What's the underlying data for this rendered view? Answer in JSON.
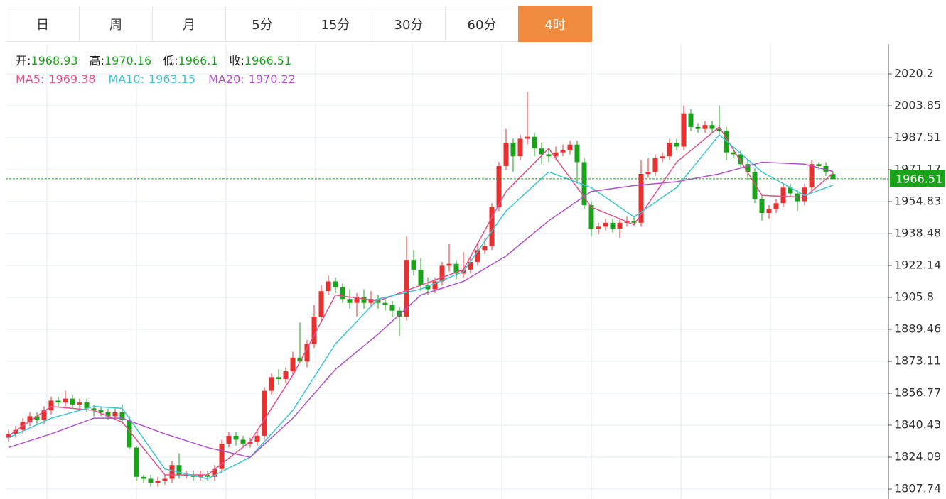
{
  "tabs": [
    "日",
    "周",
    "月",
    "5分",
    "15分",
    "30分",
    "60分",
    "4时"
  ],
  "active_tab": 7,
  "chart_data": {
    "type": "candlestick",
    "ohlc_labels": [
      "开:",
      "高:",
      "低:",
      "收:"
    ],
    "up_color": "#e8312f",
    "down_color": "#19a319",
    "ylim": [
      1802.65,
      2035.46
    ],
    "yticks": [
      1807.74,
      1824.09,
      1840.43,
      1856.77,
      1873.11,
      1889.46,
      1905.8,
      1922.14,
      1938.48,
      1954.83,
      1971.17,
      1987.51,
      2003.85,
      2020.2
    ],
    "grid": true,
    "open": [
      1834,
      1836,
      1838,
      1842,
      1845,
      1843,
      1848,
      1853,
      1852,
      1854,
      1851,
      1852,
      1849,
      1848,
      1847,
      1845,
      1847,
      1843,
      1829,
      1814,
      1813,
      1811,
      1812,
      1813,
      1820,
      1815,
      1815,
      1814,
      1815,
      1814,
      1818,
      1831,
      1835,
      1833,
      1831,
      1832,
      1835,
      1858,
      1865,
      1864,
      1868,
      1875,
      1873,
      1882,
      1896,
      1909,
      1914,
      1911,
      1905,
      1903,
      1906,
      1903,
      1905,
      1903,
      1902,
      1899,
      1896,
      1925,
      1920,
      1912,
      1910,
      1914,
      1922,
      1923,
      1918,
      1920,
      1924,
      1930,
      1932,
      1952,
      1973,
      1985,
      1978,
      1987,
      1988,
      1982,
      1979,
      1978,
      1980,
      1981,
      1984,
      1975,
      1953,
      1941,
      1942,
      1944,
      1941,
      1944,
      1945,
      1944,
      1969,
      1970,
      1977,
      1978,
      1985,
      1983,
      2000,
      1993,
      1992,
      1994,
      1992,
      1991,
      1980,
      1979,
      1974,
      1970,
      1956,
      1949,
      1951,
      1954,
      1962,
      1959,
      1955,
      1962,
      1974,
      1973,
      1968.93
    ],
    "high": [
      1838,
      1840,
      1844,
      1847,
      1847,
      1850,
      1855,
      1855,
      1858,
      1856,
      1854,
      1854,
      1851,
      1850,
      1849,
      1849,
      1851,
      1845,
      1830,
      1815,
      1815,
      1814,
      1815,
      1822,
      1826,
      1817,
      1817,
      1817,
      1817,
      1820,
      1833,
      1837,
      1837,
      1835,
      1834,
      1838,
      1860,
      1867,
      1869,
      1870,
      1878,
      1893,
      1884,
      1902,
      1912,
      1917,
      1916,
      1913,
      1910,
      1908,
      1910,
      1909,
      1907,
      1905,
      1904,
      1901,
      1937,
      1930,
      1926,
      1916,
      1916,
      1924,
      1933,
      1925,
      1929,
      1926,
      1933,
      1936,
      1954,
      1975,
      1992,
      1987,
      1989,
      2011,
      1990,
      1985,
      1982,
      1983,
      1984,
      1986,
      1986,
      1977,
      1955,
      1944,
      1946,
      1946,
      1946,
      1947,
      1947,
      1976,
      1977,
      1979,
      1980,
      1987,
      1987,
      2004,
      2002,
      1995,
      1996,
      1996,
      2004,
      1993,
      1982,
      1981,
      1976,
      1972,
      1958,
      1953,
      1956,
      1964,
      1964,
      1961,
      1964,
      1976,
      1975,
      1975,
      1970.16
    ],
    "low": [
      1832,
      1834,
      1836,
      1840,
      1841,
      1841,
      1846,
      1850,
      1850,
      1849,
      1849,
      1847,
      1845,
      1845,
      1843,
      1843,
      1841,
      1828,
      1812,
      1811,
      1809,
      1809,
      1810,
      1811,
      1813,
      1813,
      1812,
      1812,
      1812,
      1812,
      1816,
      1829,
      1830,
      1829,
      1829,
      1830,
      1833,
      1856,
      1861,
      1862,
      1866,
      1872,
      1870,
      1880,
      1894,
      1907,
      1908,
      1903,
      1900,
      1896,
      1900,
      1901,
      1900,
      1899,
      1896,
      1886,
      1894,
      1917,
      1909,
      1907,
      1908,
      1912,
      1919,
      1915,
      1916,
      1918,
      1922,
      1928,
      1930,
      1950,
      1971,
      1970,
      1976,
      1984,
      1978,
      1974,
      1975,
      1976,
      1978,
      1979,
      1964,
      1951,
      1937,
      1938,
      1940,
      1939,
      1936,
      1942,
      1942,
      1942,
      1967,
      1968,
      1975,
      1976,
      1981,
      1981,
      1991,
      1990,
      1990,
      1990,
      1989,
      1976,
      1977,
      1972,
      1966,
      1954,
      1945,
      1946,
      1949,
      1952,
      1957,
      1950,
      1953,
      1960,
      1971,
      1968,
      1966.1
    ],
    "close": [
      1836,
      1838,
      1842,
      1845,
      1843,
      1848,
      1853,
      1852,
      1854,
      1851,
      1852,
      1849,
      1848,
      1847,
      1845,
      1847,
      1843,
      1829,
      1814,
      1813,
      1811,
      1812,
      1813,
      1820,
      1815,
      1815,
      1814,
      1815,
      1814,
      1818,
      1831,
      1835,
      1833,
      1831,
      1832,
      1835,
      1858,
      1865,
      1864,
      1868,
      1875,
      1873,
      1882,
      1896,
      1909,
      1914,
      1911,
      1905,
      1903,
      1906,
      1903,
      1905,
      1903,
      1902,
      1899,
      1896,
      1925,
      1920,
      1912,
      1910,
      1914,
      1922,
      1923,
      1918,
      1920,
      1924,
      1930,
      1932,
      1952,
      1973,
      1985,
      1978,
      1987,
      1988,
      1982,
      1979,
      1978,
      1980,
      1981,
      1984,
      1975,
      1953,
      1941,
      1942,
      1944,
      1941,
      1944,
      1945,
      1944,
      1969,
      1970,
      1977,
      1978,
      1985,
      1983,
      2000,
      1993,
      1992,
      1994,
      1992,
      1991,
      1980,
      1979,
      1974,
      1970,
      1956,
      1949,
      1951,
      1954,
      1962,
      1959,
      1955,
      1962,
      1974,
      1973,
      1970,
      1966.51
    ],
    "series": [
      {
        "name": "MA5:",
        "color": "#e4508a",
        "x": [
          0,
          6,
          12,
          16,
          22,
          28,
          34,
          40,
          46,
          52,
          58,
          64,
          70,
          76,
          82,
          88,
          94,
          100,
          106,
          112,
          116
        ],
        "values": [
          1835,
          1850,
          1848,
          1842,
          1815,
          1815,
          1832,
          1866,
          1907,
          1904,
          1912,
          1920,
          1960,
          1982,
          1952,
          1943,
          1975,
          1993,
          1958,
          1957,
          1969.38
        ]
      },
      {
        "name": "MA10:",
        "color": "#3cc5d3",
        "x": [
          0,
          6,
          12,
          16,
          22,
          28,
          34,
          40,
          46,
          52,
          58,
          64,
          70,
          76,
          82,
          88,
          94,
          100,
          106,
          112,
          116
        ],
        "values": [
          1834,
          1844,
          1850,
          1849,
          1818,
          1813,
          1824,
          1848,
          1882,
          1905,
          1910,
          1919,
          1950,
          1970,
          1962,
          1947,
          1962,
          1989,
          1970,
          1958,
          1963.15
        ]
      },
      {
        "name": "MA20:",
        "color": "#b24fcc",
        "x": [
          0,
          6,
          12,
          16,
          22,
          28,
          34,
          40,
          46,
          52,
          58,
          64,
          70,
          76,
          82,
          88,
          94,
          100,
          106,
          112,
          116
        ],
        "values": [
          1829,
          1836,
          1844,
          1844,
          1836,
          1829,
          1824,
          1844,
          1869,
          1887,
          1907,
          1914,
          1927,
          1945,
          1960,
          1963,
          1965,
          1969,
          1975,
          1974,
          1970.22
        ]
      }
    ]
  }
}
